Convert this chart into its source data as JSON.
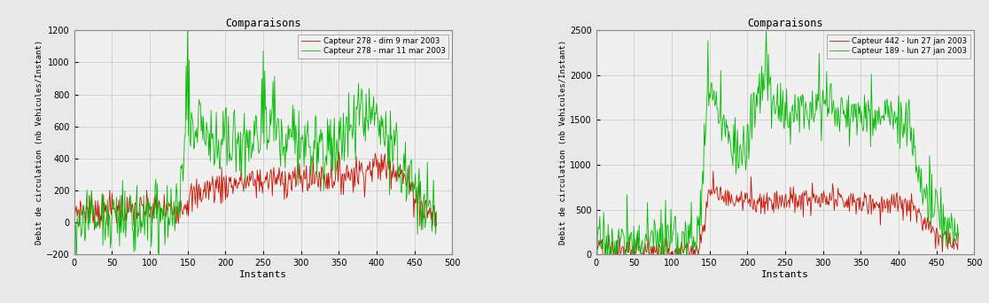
{
  "title": "Comparaisons",
  "xlabel": "Instants",
  "ylabel": "Debit de circulation (nb Vehicules/Instant)",
  "n_points": 480,
  "fig_bg": "#e8e8e8",
  "plot_bg": "#f0f0f0",
  "left": {
    "xlim": [
      0,
      500
    ],
    "ylim": [
      -200,
      1200
    ],
    "yticks": [
      -200,
      0,
      200,
      400,
      600,
      800,
      1000,
      1200
    ],
    "xticks": [
      0,
      50,
      100,
      150,
      200,
      250,
      300,
      350,
      400,
      450,
      500
    ],
    "legend": [
      "Capteur 278 - dim 9 mar 2003",
      "Capteur 278 - mar 11 mar 2003"
    ],
    "red_color": "#cc1100",
    "green_color": "#00bb00"
  },
  "right": {
    "xlim": [
      0,
      500
    ],
    "ylim": [
      0,
      2500
    ],
    "yticks": [
      0,
      500,
      1000,
      1500,
      2000,
      2500
    ],
    "xticks": [
      0,
      50,
      100,
      150,
      200,
      250,
      300,
      350,
      400,
      450,
      500
    ],
    "legend": [
      "Capteur 442 - lun 27 jan 2003",
      "Capteur 189 - lun 27 jan 2003"
    ],
    "red_color": "#cc1100",
    "green_color": "#00bb00"
  }
}
